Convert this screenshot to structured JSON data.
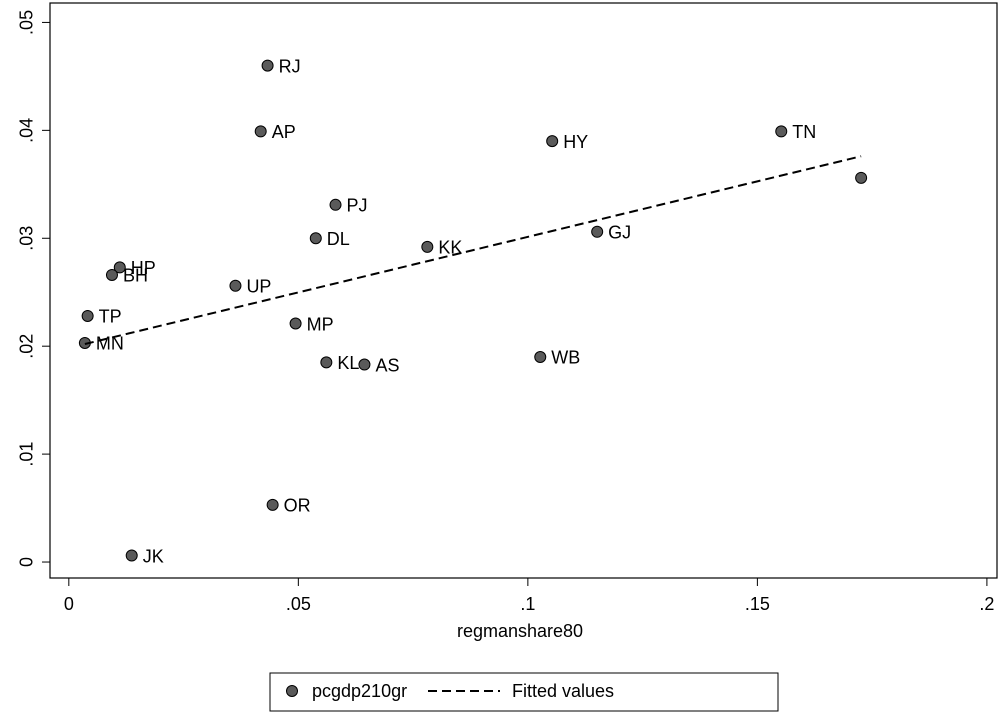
{
  "chart_data": {
    "type": "scatter",
    "x_label": "regmanshare80",
    "xlim": [
      -0.0041,
      0.2022
    ],
    "ylim": [
      -0.00148,
      0.0518
    ],
    "xticks": [
      0,
      {
        "value": 0.05,
        "label": ".05"
      },
      {
        "value": 0.1,
        "label": ".1"
      },
      {
        "value": 0.15,
        "label": ".15"
      },
      {
        "value": 0.2,
        "label": ".2"
      }
    ],
    "yticks": [
      0,
      {
        "value": 0.01,
        "label": ".01"
      },
      {
        "value": 0.02,
        "label": ".02"
      },
      {
        "value": 0.03,
        "label": ".03"
      },
      {
        "value": 0.04,
        "label": ".04"
      },
      {
        "value": 0.05,
        "label": ".05"
      }
    ],
    "series": [
      {
        "name": "pcgdp210gr",
        "type": "scatter",
        "color": "#5a5a5a",
        "x": [
          0.0433,
          0.0418,
          0.1053,
          0.1552,
          0.1726,
          0.0581,
          0.0538,
          0.0781,
          0.1151,
          0.0111,
          0.0094,
          0.0363,
          0.0041,
          0.0494,
          0.0035,
          0.0561,
          0.0644,
          0.1027,
          0.0444,
          0.0137
        ],
        "values": [
          0.046,
          0.0399,
          0.039,
          0.0399,
          0.0356,
          0.0331,
          0.03,
          0.0292,
          0.0306,
          0.0273,
          0.0266,
          0.0256,
          0.0228,
          0.0221,
          0.0203,
          0.0185,
          0.0183,
          0.019,
          0.0053,
          0.0006
        ],
        "labels": [
          "RJ",
          "AP",
          "HY",
          "TN",
          null,
          "PJ",
          "DL",
          "KK",
          "GJ",
          "HP",
          "BH",
          "UP",
          "TP",
          "MP",
          "MN",
          "KL",
          "AS",
          "WB",
          "OR",
          "JK"
        ]
      },
      {
        "name": "Fitted values",
        "type": "line",
        "color": "#000000",
        "dashed": true,
        "x": [
          0.0035,
          0.1726
        ],
        "values": [
          0.0202,
          0.0376
        ]
      }
    ]
  }
}
